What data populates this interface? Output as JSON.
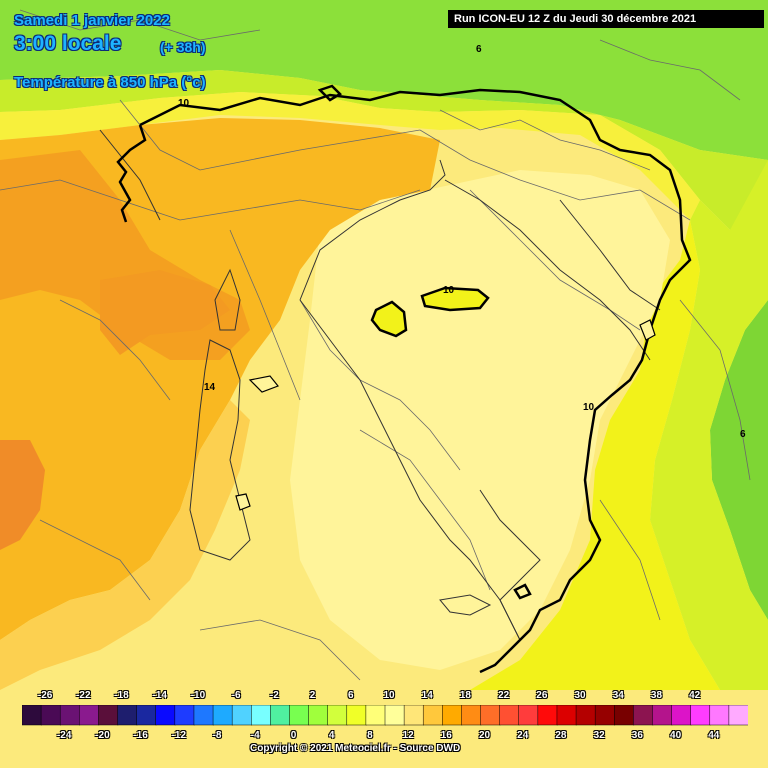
{
  "header": {
    "date": "Samedi 1 janvier 2022",
    "time": "3:00 locale",
    "lead": "(+ 38h)",
    "variable": "Température à 850 hPa (°c)",
    "run": "Run ICON-EU 12 Z du Jeudi 30 décembre 2021"
  },
  "isolines": [
    {
      "label": "6"
    },
    {
      "label": "10"
    },
    {
      "label": "10"
    },
    {
      "label": "14"
    },
    {
      "label": "10"
    },
    {
      "label": "6"
    }
  ],
  "legend": {
    "top_labels": [
      "-26",
      "-22",
      "-18",
      "-14",
      "-10",
      "-6",
      "-2",
      "2",
      "6",
      "10",
      "14",
      "18",
      "22",
      "26",
      "30",
      "34",
      "38",
      "42"
    ],
    "bottom_labels": [
      "-24",
      "-20",
      "-16",
      "-12",
      "-8",
      "-4",
      "0",
      "4",
      "8",
      "12",
      "16",
      "20",
      "24",
      "28",
      "32",
      "36",
      "40",
      "44"
    ],
    "colors": [
      "#2d0a3c",
      "#4a0a55",
      "#6a1273",
      "#8a1a8e",
      "#5a0f3a",
      "#1e1e6e",
      "#1a28a0",
      "#0a0aff",
      "#1e3cff",
      "#1e78ff",
      "#1eaaff",
      "#50d2ff",
      "#78ffff",
      "#50f0a0",
      "#78ff50",
      "#a0ff3c",
      "#d2ff3c",
      "#f0ff28",
      "#ffff78",
      "#ffff9a",
      "#ffe678",
      "#ffc83c",
      "#ffaa00",
      "#ff8c14",
      "#ff6e28",
      "#ff5032",
      "#ff3c3c",
      "#ff0a0a",
      "#dc0000",
      "#b40000",
      "#960000",
      "#780000",
      "#8c1450",
      "#b4148c",
      "#dc14c8",
      "#ff3cff",
      "#ff78ff",
      "#ffaaff"
    ]
  },
  "copyright": "Copyright © 2021 Meteociel.fr - Source DWD",
  "colors": {
    "green": "#7de02e",
    "yellow_green": "#c8f01e",
    "yellow": "#f5f51e",
    "light_yellow": "#fff58c",
    "pale_yellow": "#fcec7a",
    "orange": "#fab419",
    "deep_orange": "#f59a1e"
  }
}
